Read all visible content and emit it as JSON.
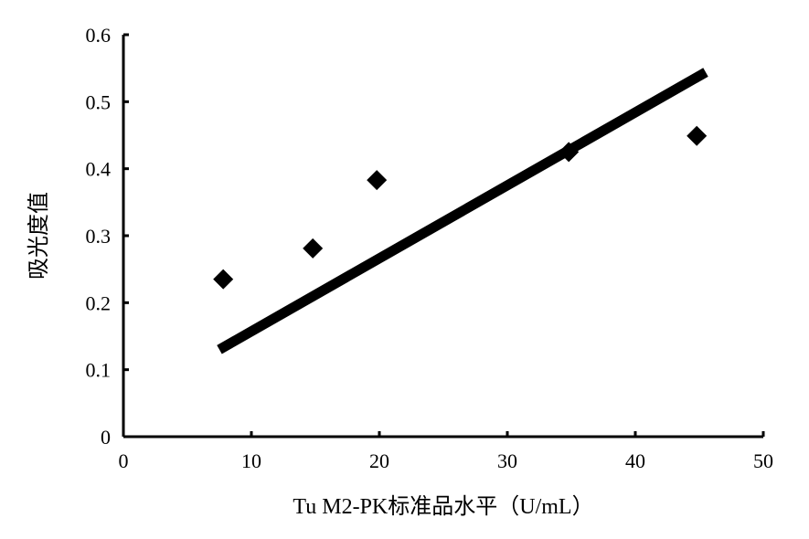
{
  "chart_data": {
    "type": "scatter",
    "title": "",
    "xlabel": "Tu  M2-PK标准品水平（U/mL）",
    "ylabel": "吸光度值",
    "xlim": [
      0,
      50
    ],
    "ylim": [
      0,
      0.6
    ],
    "xticks": [
      "0",
      "10",
      "20",
      "30",
      "40",
      "50"
    ],
    "yticks": [
      "0",
      "0.1",
      "0.2",
      "0.3",
      "0.4",
      "0.5",
      "0.6"
    ],
    "grid": false,
    "marker": "diamond",
    "color": "#000000",
    "points": [
      {
        "x": 7.8,
        "y": 0.235
      },
      {
        "x": 14.8,
        "y": 0.281
      },
      {
        "x": 19.8,
        "y": 0.383
      },
      {
        "x": 34.8,
        "y": 0.425
      },
      {
        "x": 44.8,
        "y": 0.449
      }
    ],
    "trendline": {
      "x": [
        7.5,
        45.5
      ],
      "y": [
        0.13,
        0.544
      ]
    }
  }
}
